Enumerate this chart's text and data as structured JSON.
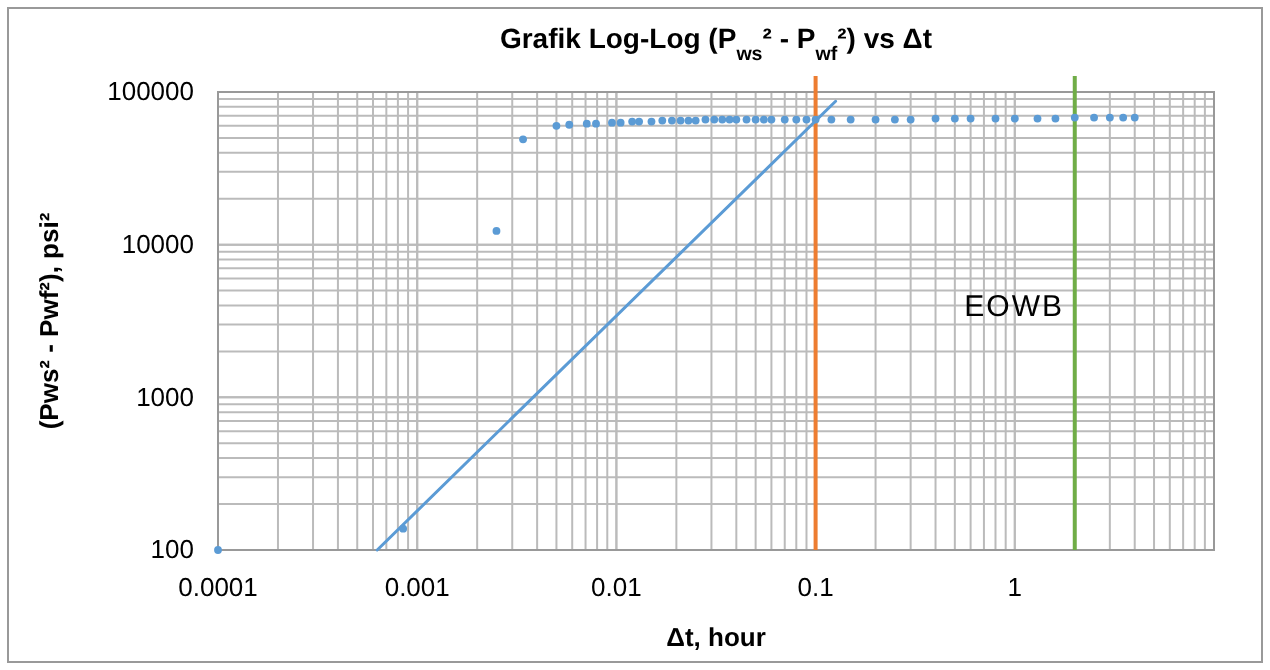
{
  "chart_data": {
    "type": "scatter",
    "title": "Grafik Log-Log (P$_{ws}$² - P$_{wf}$²) vs Δt",
    "xlabel": "Δt, hour",
    "ylabel": "(Pws² - Pwf²), psi²",
    "log": "xy",
    "grid": true,
    "marker": "circle",
    "xlim": [
      0.0001,
      10
    ],
    "xticks": [
      0.0001,
      0.001,
      0.01,
      0.1,
      1
    ],
    "ylim": [
      100,
      100000
    ],
    "yticks": [
      100,
      1000,
      10000,
      100000
    ],
    "series": [
      {
        "color": "#5b9bd5",
        "x": [
          0.0001,
          0.00085,
          0.0025,
          0.0034,
          0.005,
          0.0058,
          0.0071,
          0.0079,
          0.0095,
          0.0105,
          0.012,
          0.013,
          0.015,
          0.017,
          0.019,
          0.021,
          0.023,
          0.025,
          0.028,
          0.031,
          0.034,
          0.037,
          0.04,
          0.045,
          0.05,
          0.055,
          0.06,
          0.07,
          0.08,
          0.09,
          0.1,
          0.12,
          0.15,
          0.2,
          0.25,
          0.3,
          0.4,
          0.5,
          0.6,
          0.8,
          1,
          1.3,
          1.6,
          2,
          2.5,
          3,
          3.5,
          4
        ],
        "values": [
          100,
          138,
          12300,
          49000,
          60000,
          61000,
          62000,
          62000,
          63000,
          63000,
          64000,
          64000,
          64000,
          65000,
          65000,
          65000,
          65000,
          65000,
          66000,
          66000,
          66000,
          66000,
          66000,
          66000,
          66000,
          66000,
          66000,
          66000,
          66000,
          66000,
          66000,
          66000,
          66000,
          66000,
          66000,
          66000,
          67000,
          67000,
          67000,
          67000,
          67000,
          67000,
          67000,
          68000,
          68000,
          68000,
          68000,
          68000
        ]
      },
      {
        "type": "line",
        "color": "#5b9bd5",
        "marker": "none",
        "x": [
          0.00063,
          0.126
        ],
        "values": [
          100,
          87000
        ]
      }
    ],
    "ref_lines": [
      {
        "axis": "x",
        "value": 0.1,
        "color": "#ed7d31"
      },
      {
        "axis": "x",
        "value": 2,
        "color": "#70ad47"
      }
    ],
    "annotations": [
      "EOWB"
    ]
  }
}
